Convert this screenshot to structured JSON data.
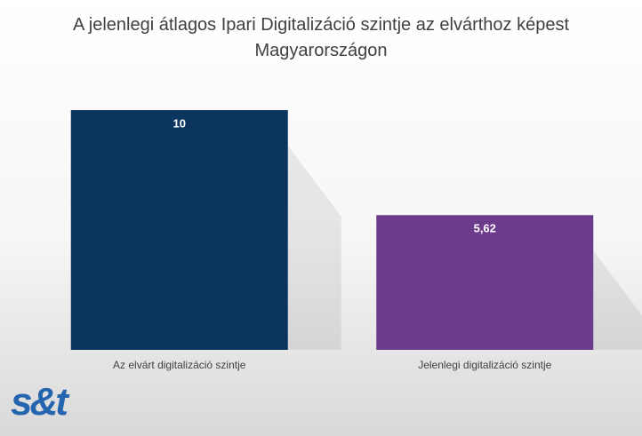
{
  "chart_data": {
    "type": "bar",
    "title": "A jelenlegi átlagos Ipari Digitalizáció szintje az elvárthoz képest Magyarországon",
    "categories": [
      "Az elvárt digitalizáció szintje",
      "Jelenlegi digitalizáció szintje"
    ],
    "values": [
      10,
      5.62
    ],
    "value_labels": [
      "10",
      "5,62"
    ],
    "colors": [
      "#0b355e",
      "#6d3b8c"
    ]
  },
  "logo": "s&t"
}
